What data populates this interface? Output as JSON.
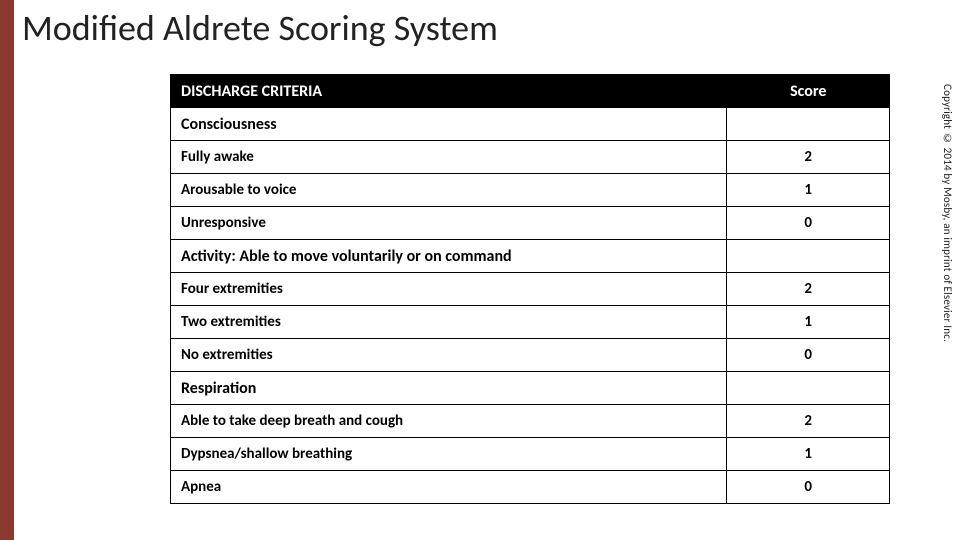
{
  "accent_color": "#8a3a2e",
  "title": "Modified Aldrete Scoring System",
  "copyright": "Copyright © 2014 by Mosby, an imprint of Elsevier Inc.",
  "header": {
    "criteria": "DISCHARGE CRITERIA",
    "score": "Score"
  },
  "sections": [
    {
      "label": "Consciousness",
      "rows": [
        {
          "label": "Fully awake",
          "score": "2"
        },
        {
          "label": "Arousable to voice",
          "score": "1"
        },
        {
          "label": "Unresponsive",
          "score": "0"
        }
      ]
    },
    {
      "label": "Activity: Able to move voluntarily or on command",
      "rows": [
        {
          "label": "Four extremities",
          "score": "2"
        },
        {
          "label": "Two extremities",
          "score": "1"
        },
        {
          "label": "No extremities",
          "score": "0"
        }
      ]
    },
    {
      "label": "Respiration",
      "rows": [
        {
          "label": "Able to take deep breath and cough",
          "score": "2"
        },
        {
          "label": "Dypsnea/shallow breathing",
          "score": "1"
        },
        {
          "label": "Apnea",
          "score": "0"
        }
      ]
    }
  ]
}
